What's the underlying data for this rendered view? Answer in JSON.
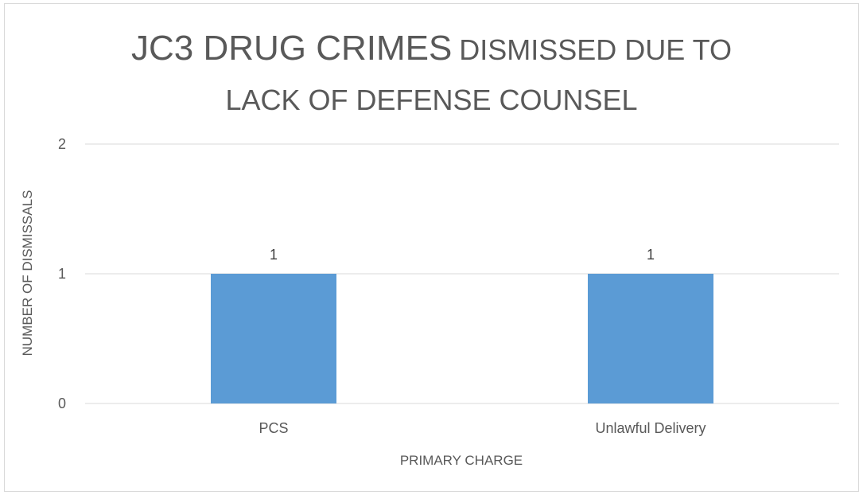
{
  "chart_data": {
    "type": "bar",
    "title_part1": "JC3 DRUG CRIMES",
    "title_part2": "DISMISSED DUE TO",
    "title_line2": "LACK OF DEFENSE COUNSEL",
    "xlabel": "PRIMARY CHARGE",
    "ylabel": "NUMBER OF DISMISSALS",
    "categories": [
      "PCS",
      "Unlawful Delivery"
    ],
    "values": [
      1,
      1
    ],
    "ylim": [
      0,
      2
    ],
    "yticks": [
      0,
      1,
      2
    ],
    "data_labels": true,
    "grid": true,
    "legend": "none",
    "bar_color": "#5b9bd5",
    "gridline_color": "#d9d9d9",
    "text_color": "#595959"
  }
}
